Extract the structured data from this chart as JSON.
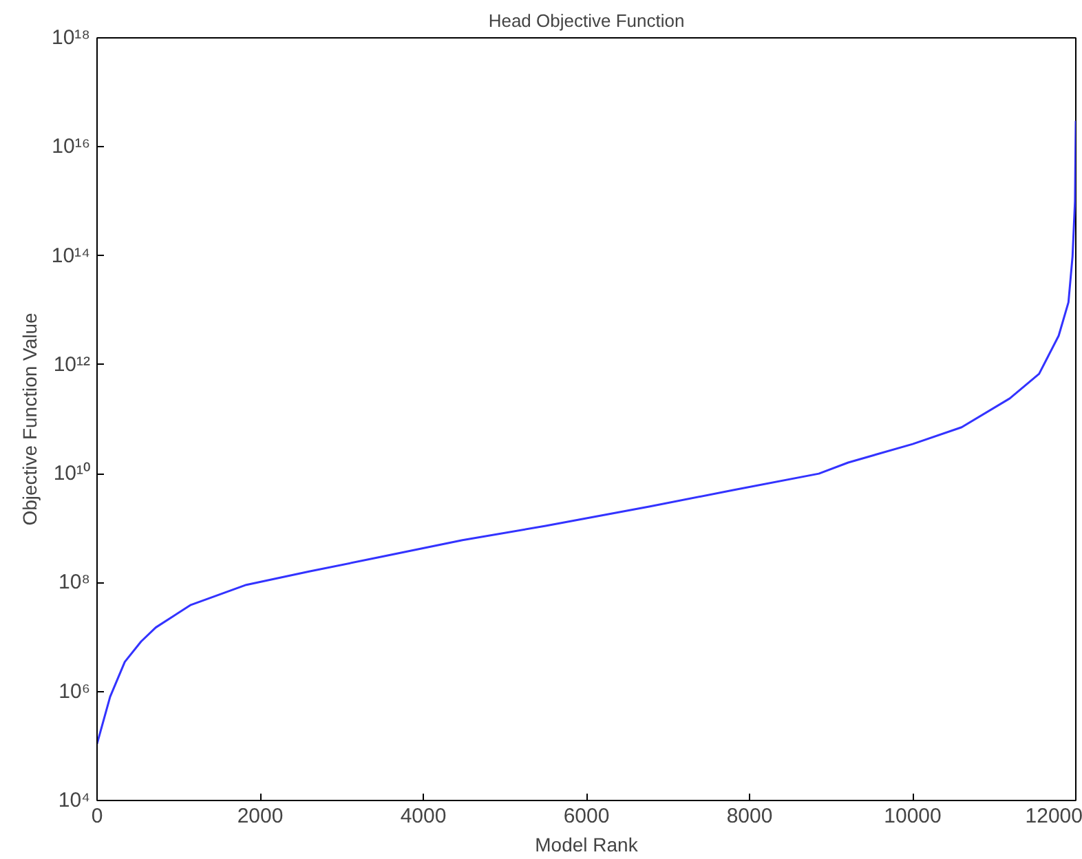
{
  "chart_data": {
    "type": "line",
    "title": "Head Objective Function",
    "xlabel": "Model Rank",
    "ylabel": "Objective Function Value",
    "log": "y",
    "xlim": [
      0,
      12000
    ],
    "xticks": [
      0,
      2000,
      4000,
      6000,
      8000,
      10000,
      12000
    ],
    "ylim": [
      10000,
      1e+18
    ],
    "yticks": [
      {
        "value": 10000,
        "label": "10⁴"
      },
      {
        "value": 1000000,
        "label": "10⁶"
      },
      {
        "value": 100000000,
        "label": "10⁸"
      },
      {
        "value": 10000000000,
        "label": "10¹⁰"
      },
      {
        "value": 1000000000000,
        "label": "10¹²"
      },
      {
        "value": 100000000000000,
        "label": "10¹⁴"
      },
      {
        "value": 10000000000000000,
        "label": "10¹⁶"
      },
      {
        "value": 1000000000000000000,
        "label": "10¹⁸"
      }
    ],
    "x": [
      0,
      160,
      340,
      540,
      720,
      1150,
      1830,
      2600,
      3450,
      4480,
      5500,
      6780,
      7800,
      8850,
      9210,
      10000,
      10600,
      11190,
      11550,
      11790,
      11910,
      11960,
      11990,
      12000
    ],
    "series": [
      {
        "color": "#3333ff",
        "values": [
          110000,
          800000,
          3500000,
          8300000,
          15000000,
          39000000,
          91000000,
          160000000,
          290000000,
          600000000,
          1100000000,
          2500000000,
          5000000000,
          10000000000,
          16000000000,
          35000000000,
          71000000000,
          240000000000,
          680000000000,
          3400000000000,
          14000000000000,
          98000000000000,
          1000000000000000,
          30000000000000000
        ]
      }
    ],
    "grid": false,
    "marker": "none",
    "line_style": "solid"
  }
}
